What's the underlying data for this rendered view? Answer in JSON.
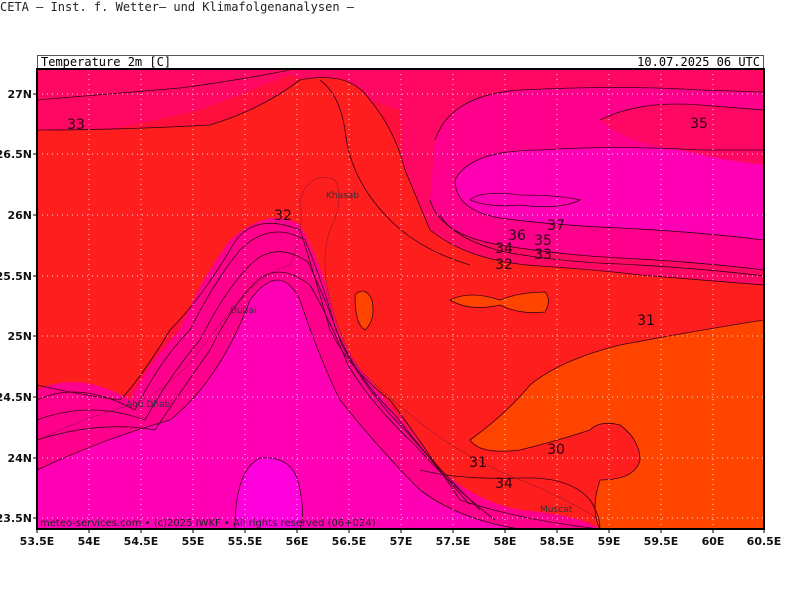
{
  "header": {
    "title": "CETA — Inst. f. Wetter— und Klimafolgenanalysen —",
    "variable": "Temperature 2m [C]",
    "valid_time": "10.07.2025 06 UTC"
  },
  "map": {
    "lon_range": [
      53.5,
      60.5
    ],
    "lat_range": [
      23.4,
      27.2
    ],
    "y_ticks": [
      "27N",
      "26.5N",
      "26N",
      "25.5N",
      "25N",
      "24.5N",
      "24N",
      "23.5N"
    ],
    "x_ticks": [
      "53.5E",
      "54E",
      "54.5E",
      "55E",
      "55.5E",
      "56E",
      "56.5E",
      "57E",
      "57.5E",
      "58E",
      "58.5E",
      "59E",
      "59.5E",
      "60E",
      "60.5E"
    ],
    "contour_labels": [
      "33",
      "32",
      "35",
      "37",
      "36",
      "35",
      "34",
      "33",
      "32",
      "31",
      "30",
      "31",
      "34"
    ],
    "cities": [
      "Khasab",
      "Dubai",
      "Abu Dhabi",
      "Muscat"
    ],
    "colors": {
      "t30": "#ff4400",
      "t31": "#ff1e1e",
      "t32": "#ff0f3c",
      "t33": "#ff0864",
      "t34": "#ff008c",
      "t35": "#ff00b4",
      "t36": "#ff00dc"
    },
    "copyright": "meteo-services.com • (c)2025 IWKF • All rights reserved (06+024)"
  }
}
